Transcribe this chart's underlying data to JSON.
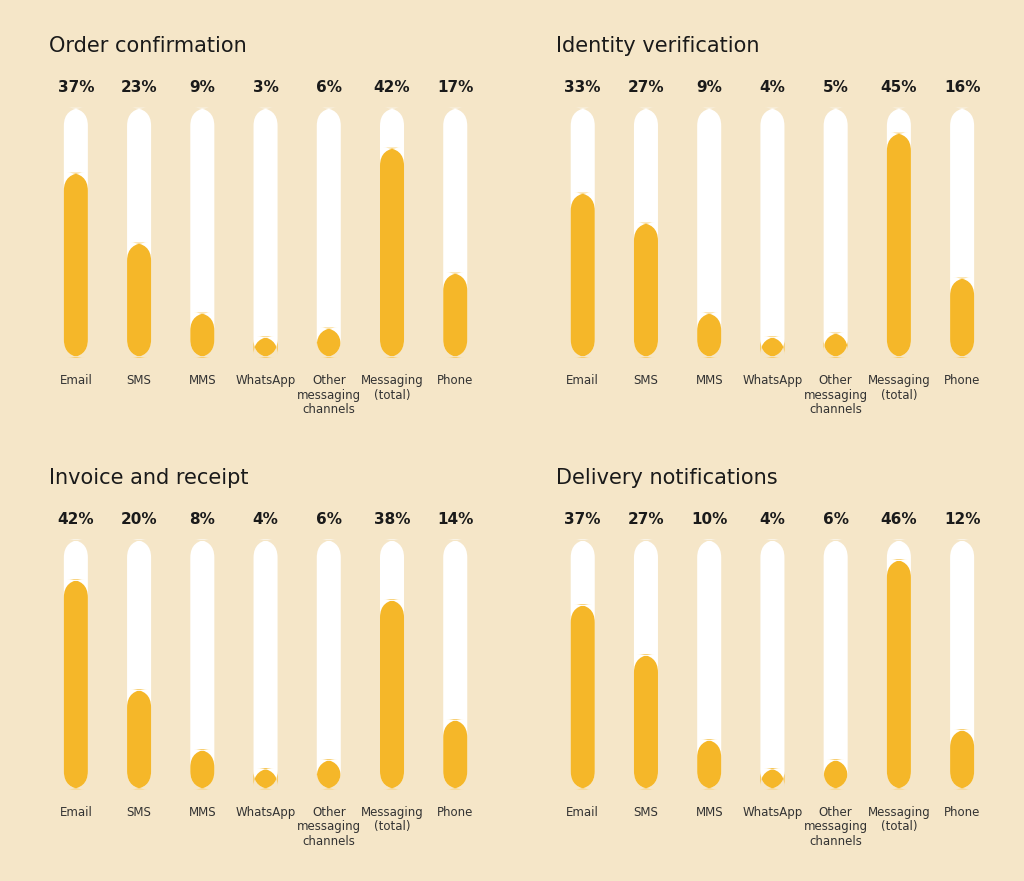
{
  "panels": [
    {
      "title": "Order confirmation",
      "values": [
        37,
        23,
        9,
        3,
        6,
        42,
        17
      ],
      "labels": [
        "Email",
        "SMS",
        "MMS",
        "WhatsApp",
        "Other\nmessaging\nchannels",
        "Messaging\n(total)",
        "Phone"
      ]
    },
    {
      "title": "Identity verification",
      "values": [
        33,
        27,
        9,
        4,
        5,
        45,
        16
      ],
      "labels": [
        "Email",
        "SMS",
        "MMS",
        "WhatsApp",
        "Other\nmessaging\nchannels",
        "Messaging\n(total)",
        "Phone"
      ]
    },
    {
      "title": "Invoice and receipt",
      "values": [
        42,
        20,
        8,
        4,
        6,
        38,
        14
      ],
      "labels": [
        "Email",
        "SMS",
        "MMS",
        "WhatsApp",
        "Other\nmessaging\nchannels",
        "Messaging\n(total)",
        "Phone"
      ]
    },
    {
      "title": "Delivery notifications",
      "values": [
        37,
        27,
        10,
        4,
        6,
        46,
        12
      ],
      "labels": [
        "Email",
        "SMS",
        "MMS",
        "WhatsApp",
        "Other\nmessaging\nchannels",
        "Messaging\n(total)",
        "Phone"
      ]
    }
  ],
  "bg_color": "#f5e6c8",
  "panel_bg": "#f5e6c8",
  "bar_color": "#f5b729",
  "bar_bg_color": "#ffffff",
  "max_value": 50,
  "title_fontsize": 15,
  "label_fontsize": 8.5,
  "pct_fontsize": 11
}
